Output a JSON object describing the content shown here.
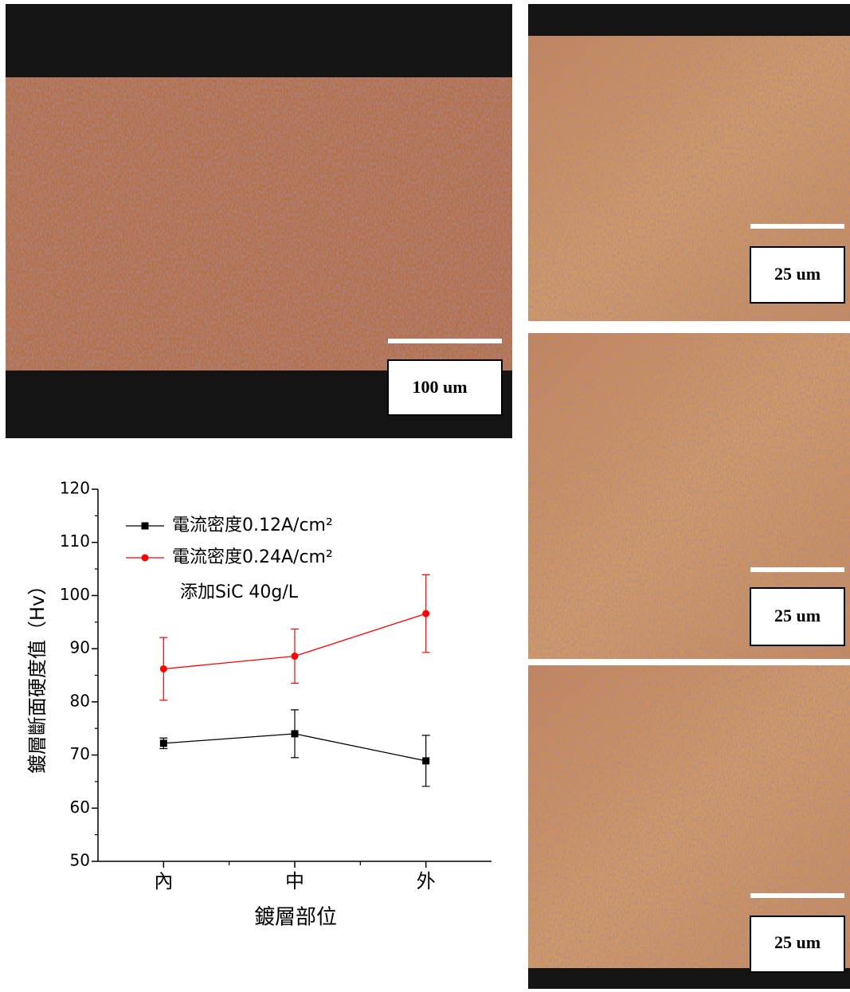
{
  "micrographs": [
    {
      "scale_label": "100 um"
    },
    {
      "scale_label": "25 um"
    },
    {
      "scale_label": "25 um"
    },
    {
      "scale_label": "25 um"
    }
  ],
  "chart_data": {
    "type": "line",
    "x_label": "鍍層部位",
    "y_label": "鍍層斷面硬度值（Hv）",
    "categories": [
      "內",
      "中",
      "外"
    ],
    "series": [
      {
        "name": "電流密度0.12A/cm²",
        "color": "#000000",
        "marker": "square",
        "values": [
          72.2,
          74.0,
          68.9
        ],
        "errors": [
          1.0,
          4.5,
          4.8
        ]
      },
      {
        "name": "電流密度0.24A/cm²",
        "color": "#ff0000",
        "marker": "circle",
        "values": [
          86.2,
          88.6,
          96.6
        ],
        "errors": [
          5.9,
          5.1,
          7.3
        ]
      }
    ],
    "legend_note": "添加SiC 40g/L",
    "ylim": [
      50,
      120
    ],
    "yticks": [
      50,
      60,
      70,
      80,
      90,
      100,
      110,
      120
    ]
  }
}
